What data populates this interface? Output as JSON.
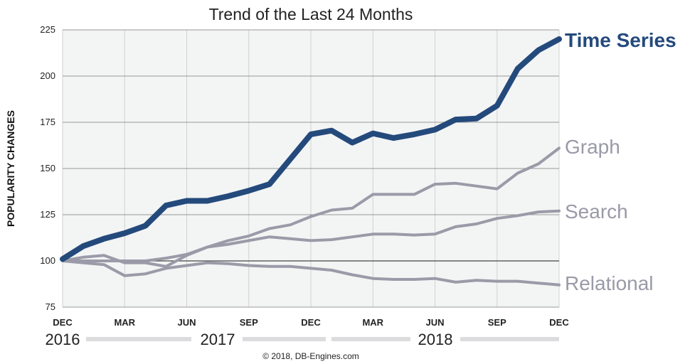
{
  "chart_data": {
    "type": "line",
    "title": "Trend of the Last 24 Months",
    "ylabel": "POPULARITY CHANGES",
    "ylim": [
      75,
      225
    ],
    "yticks": [
      "75",
      "100",
      "125",
      "150",
      "175",
      "200",
      "225"
    ],
    "xtick_labels": [
      "DEC",
      "MAR",
      "JUN",
      "SEP",
      "DEC",
      "MAR",
      "JUN",
      "SEP",
      "DEC"
    ],
    "years": [
      "2016",
      "2017",
      "2018"
    ],
    "x": [
      "Dec 2016",
      "Jan 2017",
      "Feb 2017",
      "Mar 2017",
      "Apr 2017",
      "May 2017",
      "Jun 2017",
      "Jul 2017",
      "Aug 2017",
      "Sep 2017",
      "Oct 2017",
      "Nov 2017",
      "Dec 2017",
      "Jan 2018",
      "Feb 2018",
      "Mar 2018",
      "Apr 2018",
      "May 2018",
      "Jun 2018",
      "Jul 2018",
      "Aug 2018",
      "Sep 2018",
      "Oct 2018",
      "Nov 2018",
      "Dec 2018"
    ],
    "grid": true,
    "series": [
      {
        "name": "Time Series",
        "color": "#244a7c",
        "values": [
          101,
          108,
          112,
          115,
          119,
          130,
          132.5,
          132.5,
          135,
          138,
          141.5,
          155,
          168.5,
          170.5,
          164,
          169,
          166.5,
          168.5,
          171,
          176.5,
          177,
          184,
          204,
          214,
          220
        ]
      },
      {
        "name": "Graph",
        "color": "#9a9aa8",
        "values": [
          100,
          102,
          103,
          99,
          99,
          97,
          103,
          107.5,
          111,
          113.5,
          117.5,
          119.5,
          124,
          127.5,
          128.5,
          136,
          136,
          136,
          141.5,
          142,
          140.5,
          139,
          147.5,
          152.5,
          161
        ]
      },
      {
        "name": "Search",
        "color": "#9a9aa8",
        "values": [
          100,
          100,
          100,
          100,
          100,
          101.5,
          103.5,
          107.5,
          109,
          111,
          113,
          112,
          111,
          111.5,
          113,
          114.5,
          114.5,
          114,
          114.5,
          118.5,
          120,
          123,
          124.5,
          126.5,
          127
        ]
      },
      {
        "name": "Relational",
        "color": "#9a9aa8",
        "values": [
          100,
          99,
          98,
          92,
          93,
          96,
          97.5,
          99,
          98.5,
          97.5,
          97,
          97,
          96,
          95,
          92.5,
          90.5,
          90,
          90,
          90.5,
          88.5,
          89.5,
          89,
          89,
          88,
          87
        ]
      }
    ],
    "annotations": [
      "© 2018, DB-Engines.com"
    ]
  }
}
